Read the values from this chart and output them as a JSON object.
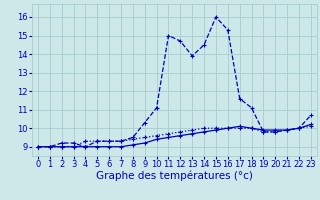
{
  "title": "Graphe des températures (°c)",
  "background_color": "#cce8e8",
  "grid_color": "#aacccc",
  "line_color": "#0000bb",
  "xlim": [
    -0.5,
    23.5
  ],
  "ylim": [
    8.5,
    16.7
  ],
  "xticks": [
    0,
    1,
    2,
    3,
    4,
    5,
    6,
    7,
    8,
    9,
    10,
    11,
    12,
    13,
    14,
    15,
    16,
    17,
    18,
    19,
    20,
    21,
    22,
    23
  ],
  "yticks": [
    9,
    10,
    11,
    12,
    13,
    14,
    15,
    16
  ],
  "xlabel_fontsize": 7.5,
  "tick_fontsize": 6.0,
  "series1_x": [
    0,
    1,
    2,
    3,
    4,
    5,
    6,
    7,
    8,
    9,
    10,
    11,
    12,
    13,
    14,
    15,
    16,
    17,
    18,
    19,
    20,
    21,
    22,
    23
  ],
  "series1_y": [
    9.0,
    9.0,
    9.2,
    9.2,
    9.0,
    9.3,
    9.3,
    9.3,
    9.5,
    10.3,
    11.1,
    15.0,
    14.7,
    13.9,
    14.5,
    16.0,
    15.3,
    11.6,
    11.1,
    9.8,
    9.8,
    9.9,
    10.0,
    10.7
  ],
  "series2_x": [
    0,
    1,
    2,
    3,
    4,
    5,
    6,
    7,
    8,
    9,
    10,
    11,
    12,
    13,
    14,
    15,
    16,
    17,
    18,
    19,
    20,
    21,
    22,
    23
  ],
  "series2_y": [
    9.0,
    9.0,
    9.0,
    9.0,
    9.3,
    9.3,
    9.3,
    9.3,
    9.4,
    9.5,
    9.6,
    9.7,
    9.8,
    9.9,
    10.0,
    10.0,
    10.0,
    10.0,
    10.0,
    9.8,
    9.8,
    9.9,
    10.0,
    10.1
  ],
  "series3_x": [
    0,
    1,
    2,
    3,
    4,
    5,
    6,
    7,
    8,
    9,
    10,
    11,
    12,
    13,
    14,
    15,
    16,
    17,
    18,
    19,
    20,
    21,
    22,
    23
  ],
  "series3_y": [
    9.0,
    9.0,
    9.0,
    9.0,
    9.0,
    9.0,
    9.0,
    9.0,
    9.1,
    9.2,
    9.4,
    9.5,
    9.6,
    9.7,
    9.8,
    9.9,
    10.0,
    10.1,
    10.0,
    9.9,
    9.9,
    9.9,
    10.0,
    10.2
  ]
}
